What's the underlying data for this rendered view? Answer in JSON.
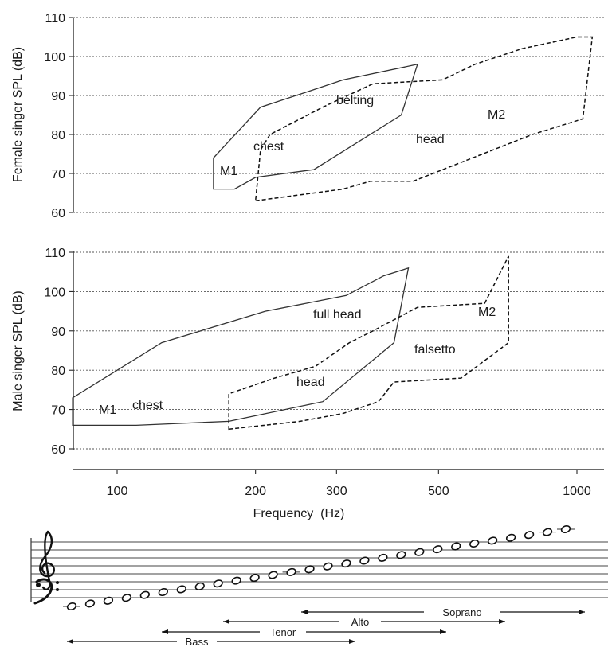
{
  "chart_data": [
    {
      "type": "area",
      "ylabel": "Female singer SPL (dB)",
      "yticks": [
        60,
        70,
        80,
        90,
        100,
        110
      ],
      "ylim": [
        60,
        110
      ],
      "xscale": "log",
      "grid": true,
      "regions": [
        {
          "style": "solid",
          "labels": [
            "M1",
            "chest",
            "belting"
          ],
          "points": [
            [
              162,
              66
            ],
            [
              180,
              66
            ],
            [
              200,
              69
            ],
            [
              268,
              71
            ],
            [
              415,
              85
            ],
            [
              450,
              98
            ],
            [
              310,
              94
            ],
            [
              260,
              91
            ],
            [
              205,
              87
            ],
            [
              162,
              74
            ]
          ]
        },
        {
          "style": "dashed",
          "labels": [
            "head",
            "M2"
          ],
          "points": [
            [
              200,
              63
            ],
            [
              310,
              66
            ],
            [
              355,
              68
            ],
            [
              440,
              68
            ],
            [
              800,
              80
            ],
            [
              1030,
              84
            ],
            [
              1080,
              105
            ],
            [
              1000,
              105
            ],
            [
              760,
              102
            ],
            [
              600,
              98
            ],
            [
              510,
              94
            ],
            [
              360,
              93
            ],
            [
              280,
              87
            ],
            [
              215,
              80
            ],
            [
              205,
              76
            ],
            [
              200,
              63
            ]
          ]
        }
      ]
    },
    {
      "type": "area",
      "ylabel": "Male singer SPL (dB)",
      "xlabel": "Frequency  (Hz)",
      "xticks": [
        100,
        200,
        300,
        500,
        1000
      ],
      "yticks": [
        60,
        70,
        80,
        90,
        100,
        110
      ],
      "ylim": [
        60,
        110
      ],
      "xscale": "log",
      "grid": true,
      "regions": [
        {
          "style": "solid",
          "labels": [
            "M1",
            "chest",
            "full head"
          ],
          "points": [
            [
              80,
              66
            ],
            [
              110,
              66
            ],
            [
              175,
              67
            ],
            [
              280,
              72
            ],
            [
              400,
              87
            ],
            [
              430,
              106
            ],
            [
              380,
              104
            ],
            [
              315,
              99
            ],
            [
              210,
              95
            ],
            [
              125,
              87
            ],
            [
              80,
              73
            ]
          ]
        },
        {
          "style": "dashed",
          "labels": [
            "head",
            "falsetto",
            "M2"
          ],
          "points": [
            [
              175,
              65
            ],
            [
              250,
              67
            ],
            [
              310,
              69
            ],
            [
              370,
              72
            ],
            [
              400,
              77
            ],
            [
              560,
              78
            ],
            [
              710,
              87
            ],
            [
              710,
              109
            ],
            [
              630,
              97
            ],
            [
              450,
              96
            ],
            [
              360,
              90
            ],
            [
              320,
              87
            ],
            [
              270,
              81
            ],
            [
              220,
              78
            ],
            [
              175,
              74
            ],
            [
              175,
              65
            ]
          ]
        }
      ]
    }
  ],
  "voice_ranges": [
    {
      "label": "Soprano"
    },
    {
      "label": "Alto"
    },
    {
      "label": "Tenor"
    },
    {
      "label": "Bass"
    }
  ]
}
